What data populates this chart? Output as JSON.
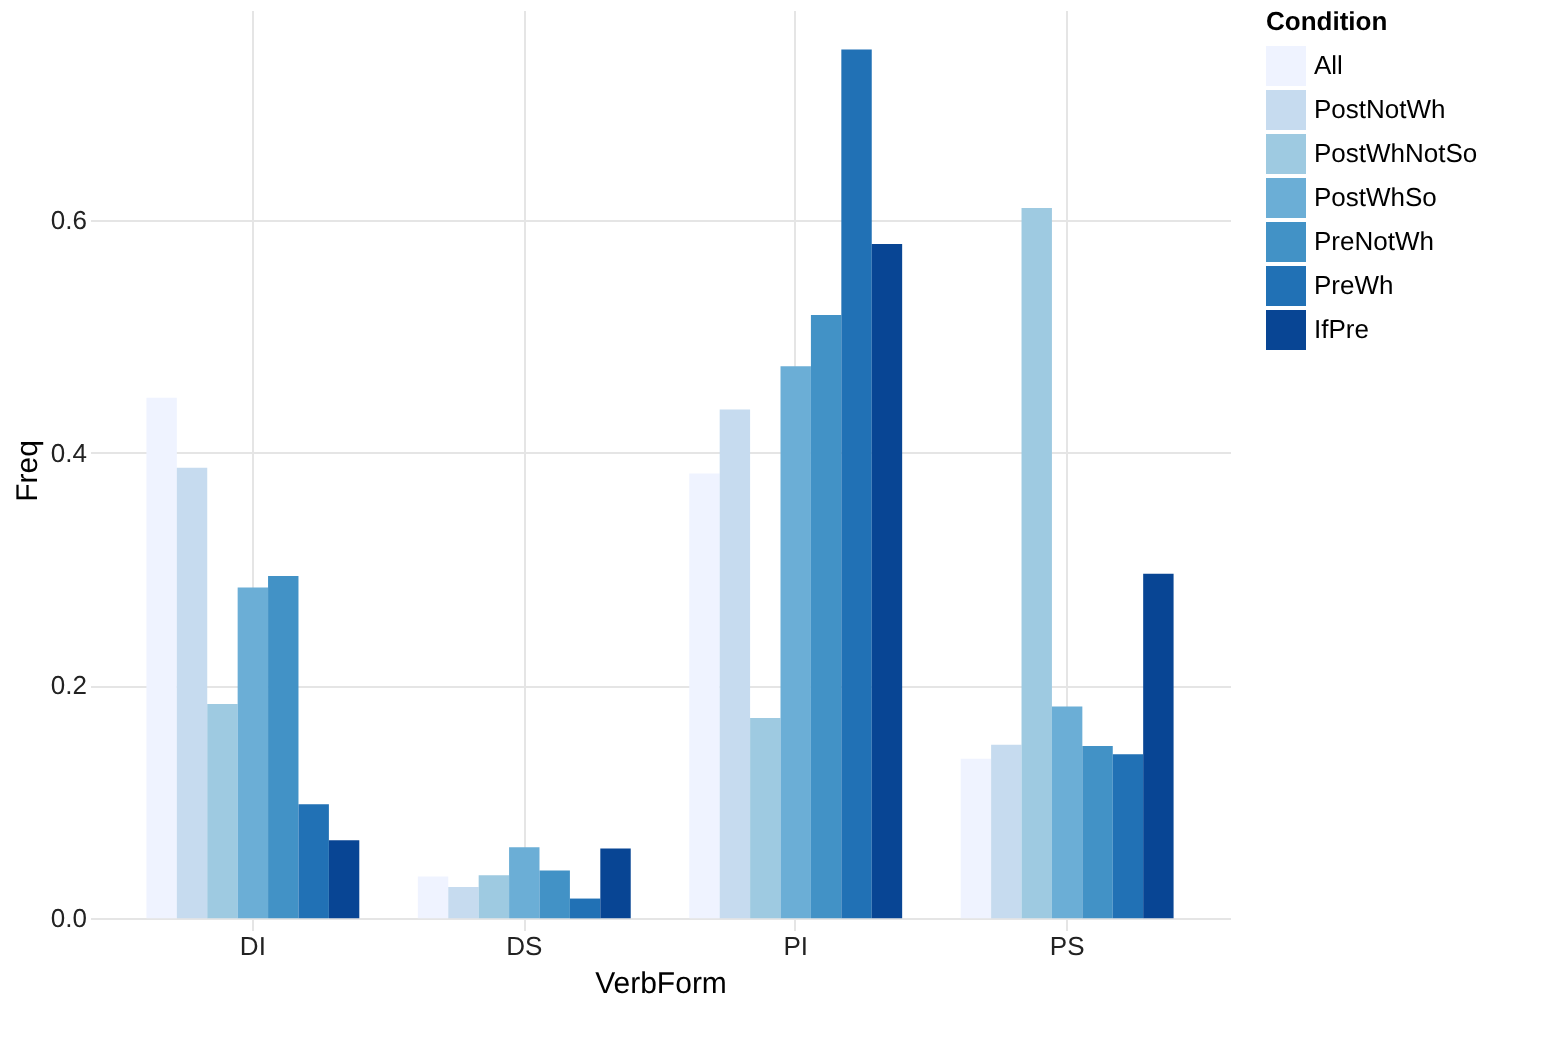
{
  "chart_data": {
    "type": "bar",
    "xlabel": "VerbForm",
    "ylabel": "Freq",
    "legend_title": "Condition",
    "categories": [
      "DI",
      "DS",
      "PI",
      "PS"
    ],
    "series": [
      {
        "name": "All",
        "color": "#eff3ff",
        "values": [
          0.447,
          0.036,
          0.382,
          0.137
        ]
      },
      {
        "name": "PostNotWh",
        "color": "#c6dbef",
        "values": [
          0.387,
          0.027,
          0.437,
          0.149
        ]
      },
      {
        "name": "PostWhNotSo",
        "color": "#9ecae1",
        "values": [
          0.184,
          0.037,
          0.172,
          0.61
        ]
      },
      {
        "name": "PostWhSo",
        "color": "#6baed6",
        "values": [
          0.284,
          0.061,
          0.474,
          0.182
        ]
      },
      {
        "name": "PreNotWh",
        "color": "#4292c6",
        "values": [
          0.294,
          0.041,
          0.518,
          0.148
        ]
      },
      {
        "name": "PreWh",
        "color": "#2171b5",
        "values": [
          0.098,
          0.017,
          0.746,
          0.141
        ]
      },
      {
        "name": "IfPre",
        "color": "#084594",
        "values": [
          0.067,
          0.06,
          0.579,
          0.296
        ]
      }
    ],
    "ylim": [
      -0.01,
      0.78
    ],
    "yticks": [
      {
        "value": 0,
        "label": "0.0"
      },
      {
        "value": 0.2,
        "label": "0.2"
      },
      {
        "value": 0.4,
        "label": "0.4"
      },
      {
        "value": 0.6,
        "label": "0.6"
      }
    ],
    "grid": true,
    "legend": "right"
  }
}
